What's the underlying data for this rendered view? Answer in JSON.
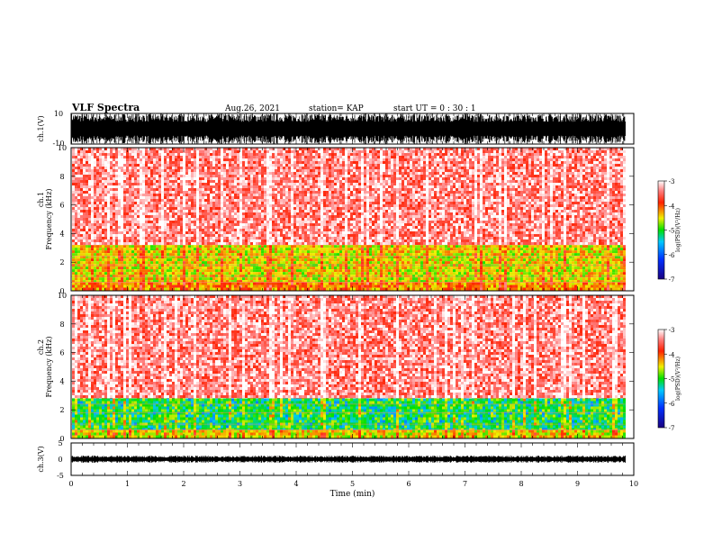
{
  "header": {
    "title": "VLF Spectra",
    "date": "Aug.26, 2021",
    "station": "station= KAP",
    "start": "start UT = 0 : 30 : 1"
  },
  "chart_data": [
    {
      "type": "line",
      "ylabel": "ch.1(V)",
      "ylim": [
        -10,
        10
      ],
      "yticks": [
        "10",
        "-10"
      ],
      "description_of_signal": "dense waveform",
      "x_range_min": [
        0,
        9.85
      ]
    },
    {
      "type": "heatmap",
      "ylabel_top": "ch.1",
      "ylabel": "Frequency (kHz)",
      "ylim": [
        0,
        10
      ],
      "yticks": [
        "0",
        "2",
        "4",
        "6",
        "8",
        "10"
      ],
      "colorbar": {
        "label": "log(PSD)(V²/Hz)",
        "ticks": [
          "-3",
          "-4",
          "-5",
          "-6",
          "-7"
        ],
        "range": [
          -7,
          -3
        ]
      },
      "band_levels": [
        {
          "f": [
            0,
            0.6
          ],
          "level": -4.2
        },
        {
          "f": [
            0.6,
            3.2
          ],
          "level": -4.5
        },
        {
          "f": [
            3.2,
            10
          ],
          "level": -3.4
        }
      ]
    },
    {
      "type": "heatmap",
      "ylabel_top": "ch.2",
      "ylabel": "Frequency (kHz)",
      "ylim": [
        0,
        10
      ],
      "yticks": [
        "0",
        "2",
        "4",
        "6",
        "8",
        "10"
      ],
      "colorbar": {
        "label": "log(PSD)(V²/Hz)",
        "ticks": [
          "-3",
          "-4",
          "-5",
          "-6",
          "-7"
        ],
        "range": [
          -7,
          -3
        ]
      },
      "band_levels": [
        {
          "f": [
            0,
            0.6
          ],
          "level": -4.5
        },
        {
          "f": [
            0.6,
            2.8
          ],
          "level": -5.0
        },
        {
          "f": [
            2.8,
            10
          ],
          "level": -3.4
        }
      ]
    },
    {
      "type": "line",
      "ylabel": "ch.3(V)",
      "ylim": [
        -5,
        5
      ],
      "yticks": [
        "5",
        "0",
        "-5"
      ],
      "x_range_min": [
        0,
        9.85
      ],
      "baseline": 0
    }
  ],
  "xaxis": {
    "label": "Time (min)",
    "xlim": [
      0,
      10
    ],
    "ticks": [
      "0",
      "1",
      "2",
      "3",
      "4",
      "5",
      "6",
      "7",
      "8",
      "9",
      "10"
    ]
  }
}
